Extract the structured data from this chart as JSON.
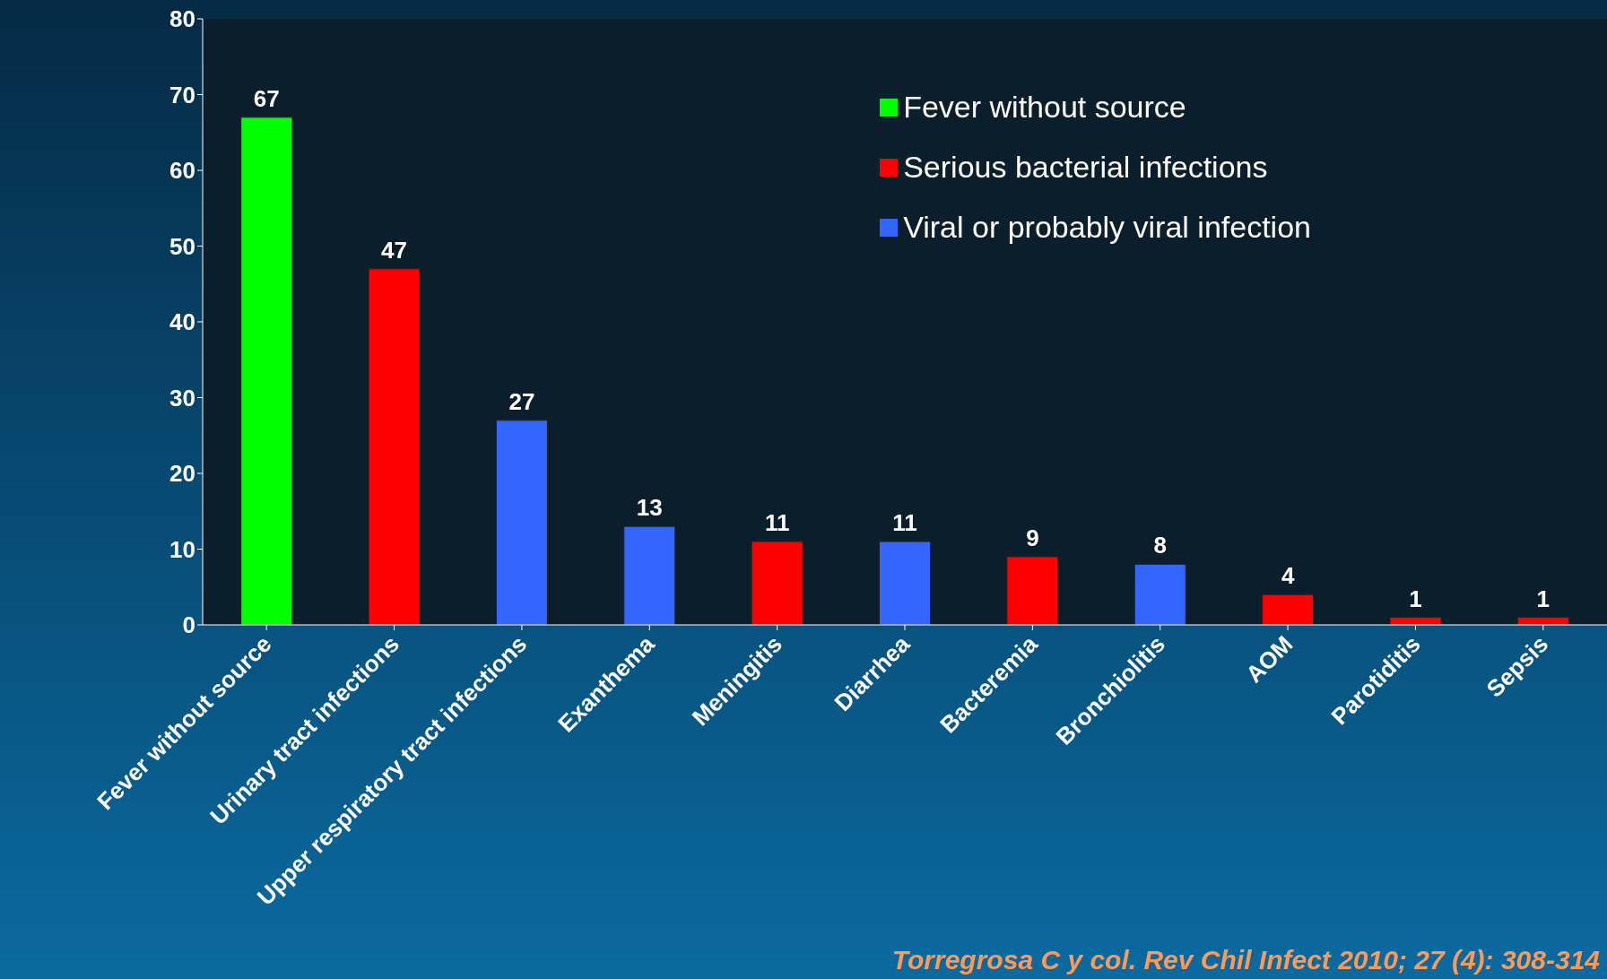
{
  "chart_data": {
    "type": "bar",
    "stacked": true,
    "categories": [
      "Fever without source",
      "Urinary tract infections",
      "Upper respiratory tract infections",
      "Exanthema",
      "Meningitis",
      "Diarrhea",
      "Bacteremia",
      "Bronchiolitis",
      "AOM",
      "Parotiditis",
      "Sepsis"
    ],
    "series": [
      {
        "name": "Fever without source",
        "color": "#00ff00",
        "values": [
          67,
          null,
          null,
          null,
          null,
          null,
          null,
          null,
          null,
          null,
          null
        ]
      },
      {
        "name": "Serious bacterial infections",
        "color": "#ff0000",
        "values": [
          null,
          47,
          null,
          null,
          11,
          null,
          9,
          null,
          4,
          1,
          1
        ]
      },
      {
        "name": "Viral or probably viral infection",
        "color": "#3366ff",
        "values": [
          null,
          null,
          27,
          13,
          null,
          11,
          null,
          8,
          null,
          null,
          null
        ]
      }
    ],
    "ylim": [
      0,
      80
    ],
    "yticks": [
      0,
      10,
      20,
      30,
      40,
      50,
      60,
      70,
      80
    ],
    "data_labels": true,
    "legend": "top right",
    "annotations": [
      "Torregrosa C y col. Rev Chil Infect 2010; 27 (4): 308-314"
    ]
  }
}
